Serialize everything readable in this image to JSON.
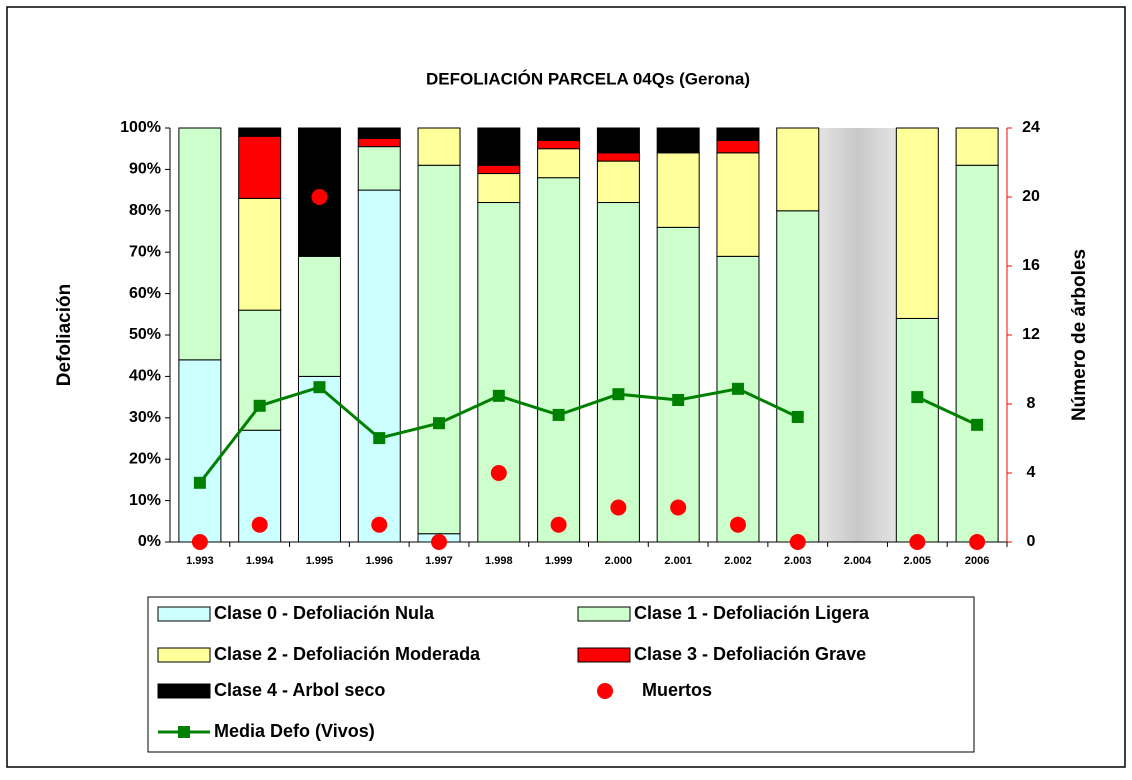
{
  "chart_data": {
    "type": "bar",
    "stacked": true,
    "title": "DEFOLIACIÓN PARCELA 04Qs (Gerona)",
    "ylabel": "Defoliación",
    "y2label": "Número de árboles",
    "categories": [
      "1.993",
      "1.994",
      "1.995",
      "1.996",
      "1.997",
      "1.998",
      "1.999",
      "2.000",
      "2.001",
      "2.002",
      "2.003",
      "2.004",
      "2.005",
      "2006"
    ],
    "ylim": [
      0,
      100
    ],
    "yticks": [
      {
        "value": 0,
        "label": "0%"
      },
      {
        "value": 10,
        "label": "10%"
      },
      {
        "value": 20,
        "label": "20%"
      },
      {
        "value": 30,
        "label": "30%"
      },
      {
        "value": 40,
        "label": "40%"
      },
      {
        "value": 50,
        "label": "50%"
      },
      {
        "value": 60,
        "label": "60%"
      },
      {
        "value": 70,
        "label": "70%"
      },
      {
        "value": 80,
        "label": "80%"
      },
      {
        "value": 90,
        "label": "90%"
      },
      {
        "value": 100,
        "label": "100%"
      }
    ],
    "y2lim": [
      0,
      24
    ],
    "y2ticks": [
      0,
      4,
      8,
      12,
      16,
      20,
      24
    ],
    "y2color": "#ff0000",
    "series": [
      {
        "name": "Clase 0 - Defoliación Nula",
        "color": "#ccffff",
        "values": [
          44,
          27,
          40,
          85,
          2,
          0,
          0,
          0,
          0,
          0,
          0,
          null,
          0,
          0
        ]
      },
      {
        "name": "Clase 1 - Defoliación Ligera",
        "color": "#ccffcc",
        "values": [
          56,
          29,
          29,
          10.5,
          89,
          82,
          88,
          82,
          76,
          69,
          80,
          null,
          54,
          91
        ]
      },
      {
        "name": "Clase 2 - Defoliación Moderada",
        "color": "#ffff99",
        "values": [
          0,
          27,
          0,
          0,
          9,
          7,
          7,
          10,
          18,
          25,
          20,
          null,
          46,
          9
        ]
      },
      {
        "name": "Clase 3 - Defoliación Grave",
        "color": "#ff0000",
        "values": [
          0,
          15,
          0,
          2,
          0,
          2,
          2,
          2,
          0,
          3,
          0,
          null,
          0,
          0
        ]
      },
      {
        "name": "Clase 4 - Arbol seco",
        "color": "#000000",
        "values": [
          0,
          2,
          31,
          2.5,
          0,
          9,
          3,
          6,
          6,
          3,
          0,
          null,
          0,
          0
        ]
      },
      {
        "name": "Muertos",
        "color": "#ff0000",
        "type": "scatter",
        "axis": "y2",
        "values": [
          0,
          1,
          20,
          1,
          0,
          4,
          1,
          2,
          2,
          1,
          0,
          null,
          0,
          0
        ]
      },
      {
        "name": "Media Defo (Vivos)",
        "color": "#008000",
        "type": "line",
        "values": [
          14.3,
          32.9,
          37.4,
          25.1,
          28.7,
          35.3,
          30.7,
          35.7,
          34.3,
          37,
          30.2,
          null,
          35,
          28.3
        ]
      }
    ]
  }
}
